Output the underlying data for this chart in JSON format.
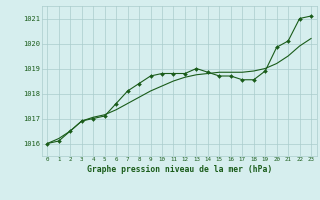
{
  "x": [
    0,
    1,
    2,
    3,
    4,
    5,
    6,
    7,
    8,
    9,
    10,
    11,
    12,
    13,
    14,
    15,
    16,
    17,
    18,
    19,
    20,
    21,
    22,
    23
  ],
  "y_main": [
    1016.0,
    1016.1,
    1016.5,
    1016.9,
    1017.0,
    1017.1,
    1017.6,
    1018.1,
    1018.4,
    1018.7,
    1018.8,
    1018.8,
    1018.8,
    1019.0,
    1018.85,
    1018.7,
    1018.7,
    1018.55,
    1018.55,
    1018.9,
    1019.85,
    1020.1,
    1021.0,
    1021.1
  ],
  "y_smooth": [
    1016.0,
    1016.2,
    1016.5,
    1016.9,
    1017.05,
    1017.15,
    1017.35,
    1017.6,
    1017.85,
    1018.1,
    1018.3,
    1018.5,
    1018.65,
    1018.75,
    1018.8,
    1018.85,
    1018.85,
    1018.85,
    1018.9,
    1019.0,
    1019.2,
    1019.5,
    1019.9,
    1020.2
  ],
  "bg_color": "#d6eeee",
  "grid_color": "#aacccc",
  "line_color": "#1a5c1a",
  "title": "Graphe pression niveau de la mer (hPa)",
  "ylim_min": 1015.5,
  "ylim_max": 1021.5,
  "yticks": [
    1016,
    1017,
    1018,
    1019,
    1020,
    1021
  ],
  "xticks": [
    0,
    1,
    2,
    3,
    4,
    5,
    6,
    7,
    8,
    9,
    10,
    11,
    12,
    13,
    14,
    15,
    16,
    17,
    18,
    19,
    20,
    21,
    22,
    23
  ]
}
